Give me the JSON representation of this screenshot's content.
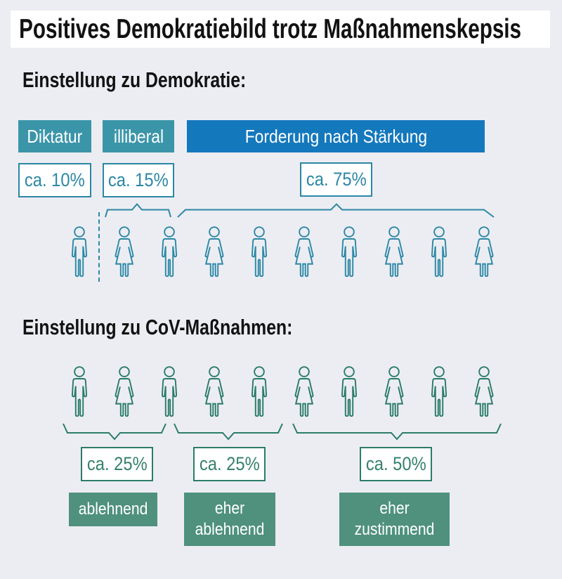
{
  "title": "Positives Demokratiebild trotz Maßnahmenskepsis",
  "sections": {
    "demokratie": {
      "heading": "Einstellung zu Demokratie:",
      "categories": [
        {
          "label": "Diktatur",
          "percent": "ca. 10%"
        },
        {
          "label": "illiberal",
          "percent": "ca. 15%"
        },
        {
          "label": "Forderung nach Stärkung",
          "percent": "ca. 75%"
        }
      ],
      "icons": [
        "male",
        "female",
        "male",
        "female",
        "male",
        "female",
        "male",
        "female",
        "male",
        "female"
      ]
    },
    "massnahmen": {
      "heading": "Einstellung zu CoV-Maßnahmen:",
      "categories": [
        {
          "label": "ablehnend",
          "percent": "ca. 25%"
        },
        {
          "label": "eher ablehnend",
          "percent": "ca. 25%"
        },
        {
          "label": "eher zustimmend",
          "percent": "ca. 50%"
        }
      ],
      "icons": [
        "male",
        "female",
        "male",
        "female",
        "male",
        "female",
        "male",
        "female",
        "male",
        "female"
      ]
    }
  },
  "colors": {
    "background": "#ecedf2",
    "teal_box": "#3b95a9",
    "blue_box": "#1478bd",
    "teal_stroke": "#2b87a5",
    "green_box": "#4f917d",
    "green_stroke": "#2b7c69",
    "title_bar": "#ffffff",
    "text": "#121212"
  },
  "chart_data": [
    {
      "type": "pictogram",
      "title": "Einstellung zu Demokratie",
      "categories": [
        "Diktatur",
        "illiberal",
        "Forderung nach Stärkung"
      ],
      "values": [
        10,
        15,
        75
      ],
      "value_labels": [
        "ca. 10%",
        "ca. 15%",
        "ca. 75%"
      ],
      "unit": "percent",
      "icons_total": 10,
      "legend_position": "above-icons"
    },
    {
      "type": "pictogram",
      "title": "Einstellung zu CoV-Maßnahmen",
      "categories": [
        "ablehnend",
        "eher ablehnend",
        "eher zustimmend"
      ],
      "values": [
        25,
        25,
        50
      ],
      "value_labels": [
        "ca. 25%",
        "ca. 25%",
        "ca. 50%"
      ],
      "unit": "percent",
      "icons_total": 10,
      "legend_position": "below-icons"
    }
  ]
}
